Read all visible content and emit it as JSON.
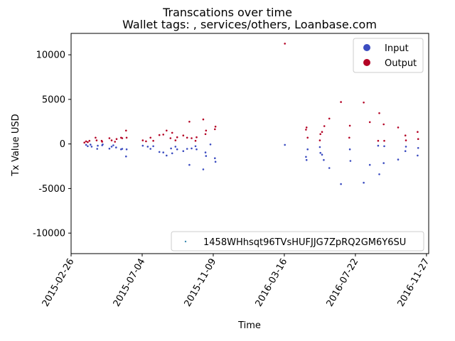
{
  "chart_data": {
    "type": "scatter",
    "title": "Transcations over time",
    "subtitle": "Wallet tags: , services/others, Loanbase.com",
    "xlabel": "Time",
    "ylabel": "Tx Value USD",
    "x_ticks": [
      "2015-02-26",
      "2015-07-04",
      "2015-11-09",
      "2016-03-16",
      "2016-07-22",
      "2016-11-27"
    ],
    "xlim": [
      "2015-02-26",
      "2016-12-01"
    ],
    "y_ticks": [
      -10000,
      -5000,
      0,
      5000,
      10000
    ],
    "ylim": [
      -12300,
      12400
    ],
    "grid": false,
    "legend_top": {
      "placement": "top-right",
      "entries": [
        {
          "label": "Input",
          "color": "#3b4cc0"
        },
        {
          "label": "Output",
          "color": "#b40426"
        }
      ]
    },
    "legend_bottom": {
      "placement": "bottom-right",
      "entries": [
        {
          "label": "1458WHhsqt96TVsHUFJJG7ZpRQ2GM6Y6SU",
          "color": "#3b8bb0"
        }
      ]
    },
    "series": [
      {
        "name": "Input",
        "color": "#3b4cc0",
        "points": [
          {
            "x": "2015-03-25",
            "y": -100
          },
          {
            "x": "2015-03-28",
            "y": -250
          },
          {
            "x": "2015-04-02",
            "y": -80
          },
          {
            "x": "2015-04-04",
            "y": -300
          },
          {
            "x": "2015-04-14",
            "y": -550
          },
          {
            "x": "2015-04-15",
            "y": -200
          },
          {
            "x": "2015-04-23",
            "y": -150
          },
          {
            "x": "2015-04-24",
            "y": -50
          },
          {
            "x": "2015-05-06",
            "y": -520
          },
          {
            "x": "2015-05-10",
            "y": -300
          },
          {
            "x": "2015-05-13",
            "y": -150
          },
          {
            "x": "2015-05-18",
            "y": -400
          },
          {
            "x": "2015-05-27",
            "y": -600
          },
          {
            "x": "2015-05-29",
            "y": -550
          },
          {
            "x": "2015-06-05",
            "y": -1400
          },
          {
            "x": "2015-06-06",
            "y": -600
          },
          {
            "x": "2015-07-05",
            "y": -200
          },
          {
            "x": "2015-07-14",
            "y": -300
          },
          {
            "x": "2015-07-19",
            "y": -550
          },
          {
            "x": "2015-07-24",
            "y": -250
          },
          {
            "x": "2015-08-04",
            "y": -900
          },
          {
            "x": "2015-08-11",
            "y": -950
          },
          {
            "x": "2015-08-17",
            "y": -1300
          },
          {
            "x": "2015-08-25",
            "y": -500
          },
          {
            "x": "2015-08-27",
            "y": -1050
          },
          {
            "x": "2015-09-02",
            "y": -300
          },
          {
            "x": "2015-09-05",
            "y": -600
          },
          {
            "x": "2015-09-16",
            "y": -800
          },
          {
            "x": "2015-09-23",
            "y": -550
          },
          {
            "x": "2015-09-27",
            "y": -2350
          },
          {
            "x": "2015-10-01",
            "y": -500
          },
          {
            "x": "2015-10-08",
            "y": -250
          },
          {
            "x": "2015-10-10",
            "y": -600
          },
          {
            "x": "2015-10-22",
            "y": -2850
          },
          {
            "x": "2015-10-26",
            "y": -950
          },
          {
            "x": "2015-10-27",
            "y": -1350
          },
          {
            "x": "2015-11-04",
            "y": -50
          },
          {
            "x": "2015-11-12",
            "y": -1600
          },
          {
            "x": "2015-11-13",
            "y": -2000
          },
          {
            "x": "2016-03-17",
            "y": -100
          },
          {
            "x": "2016-04-24",
            "y": -1450
          },
          {
            "x": "2016-04-25",
            "y": -1800
          },
          {
            "x": "2016-04-27",
            "y": -600
          },
          {
            "x": "2016-05-19",
            "y": -350
          },
          {
            "x": "2016-05-20",
            "y": -1000
          },
          {
            "x": "2016-05-23",
            "y": -1200
          },
          {
            "x": "2016-05-26",
            "y": -1800
          },
          {
            "x": "2016-06-05",
            "y": -2700
          },
          {
            "x": "2016-06-26",
            "y": -4500
          },
          {
            "x": "2016-07-12",
            "y": -600
          },
          {
            "x": "2016-07-13",
            "y": -1900
          },
          {
            "x": "2016-08-06",
            "y": -4350
          },
          {
            "x": "2016-08-17",
            "y": -2350
          },
          {
            "x": "2016-09-01",
            "y": -200
          },
          {
            "x": "2016-09-03",
            "y": -3400
          },
          {
            "x": "2016-09-11",
            "y": -2150
          },
          {
            "x": "2016-09-12",
            "y": -250
          },
          {
            "x": "2016-10-07",
            "y": -1750
          },
          {
            "x": "2016-10-20",
            "y": -800
          },
          {
            "x": "2016-10-21",
            "y": -300
          },
          {
            "x": "2016-11-11",
            "y": -1300
          },
          {
            "x": "2016-11-12",
            "y": -450
          }
        ]
      },
      {
        "name": "Output",
        "color": "#b40426",
        "points": [
          {
            "x": "2015-03-22",
            "y": 150
          },
          {
            "x": "2015-03-25",
            "y": 300
          },
          {
            "x": "2015-03-28",
            "y": 200
          },
          {
            "x": "2015-03-31",
            "y": 350
          },
          {
            "x": "2015-04-11",
            "y": 700
          },
          {
            "x": "2015-04-13",
            "y": 400
          },
          {
            "x": "2015-04-22",
            "y": 350
          },
          {
            "x": "2015-04-23",
            "y": 250
          },
          {
            "x": "2015-05-06",
            "y": 650
          },
          {
            "x": "2015-05-10",
            "y": 400
          },
          {
            "x": "2015-05-16",
            "y": 250
          },
          {
            "x": "2015-05-19",
            "y": 550
          },
          {
            "x": "2015-05-27",
            "y": 700
          },
          {
            "x": "2015-05-29",
            "y": 650
          },
          {
            "x": "2015-06-05",
            "y": 1500
          },
          {
            "x": "2015-06-06",
            "y": 700
          },
          {
            "x": "2015-07-05",
            "y": 400
          },
          {
            "x": "2015-07-11",
            "y": 300
          },
          {
            "x": "2015-07-19",
            "y": 700
          },
          {
            "x": "2015-07-24",
            "y": 350
          },
          {
            "x": "2015-08-04",
            "y": 1000
          },
          {
            "x": "2015-08-11",
            "y": 1050
          },
          {
            "x": "2015-08-17",
            "y": 1500
          },
          {
            "x": "2015-08-24",
            "y": 650
          },
          {
            "x": "2015-08-27",
            "y": 1250
          },
          {
            "x": "2015-09-02",
            "y": 400
          },
          {
            "x": "2015-09-05",
            "y": 750
          },
          {
            "x": "2015-09-16",
            "y": 950
          },
          {
            "x": "2015-09-23",
            "y": 700
          },
          {
            "x": "2015-09-27",
            "y": 2500
          },
          {
            "x": "2015-10-01",
            "y": 650
          },
          {
            "x": "2015-10-08",
            "y": 350
          },
          {
            "x": "2015-10-10",
            "y": 750
          },
          {
            "x": "2015-10-22",
            "y": 2750
          },
          {
            "x": "2015-10-26",
            "y": 1100
          },
          {
            "x": "2015-10-27",
            "y": 1500
          },
          {
            "x": "2015-11-12",
            "y": 1650
          },
          {
            "x": "2015-11-13",
            "y": 1950
          },
          {
            "x": "2016-03-17",
            "y": 11250
          },
          {
            "x": "2016-04-24",
            "y": 1600
          },
          {
            "x": "2016-04-25",
            "y": 1850
          },
          {
            "x": "2016-04-27",
            "y": 700
          },
          {
            "x": "2016-05-19",
            "y": 400
          },
          {
            "x": "2016-05-20",
            "y": 1100
          },
          {
            "x": "2016-05-23",
            "y": 1350
          },
          {
            "x": "2016-05-27",
            "y": 2000
          },
          {
            "x": "2016-06-05",
            "y": 2850
          },
          {
            "x": "2016-06-26",
            "y": 4700
          },
          {
            "x": "2016-07-11",
            "y": 700
          },
          {
            "x": "2016-07-12",
            "y": 2050
          },
          {
            "x": "2016-08-06",
            "y": 4650
          },
          {
            "x": "2016-08-17",
            "y": 2450
          },
          {
            "x": "2016-09-01",
            "y": 350
          },
          {
            "x": "2016-09-03",
            "y": 3450
          },
          {
            "x": "2016-09-11",
            "y": 2200
          },
          {
            "x": "2016-09-12",
            "y": 350
          },
          {
            "x": "2016-10-07",
            "y": 1850
          },
          {
            "x": "2016-10-20",
            "y": 950
          },
          {
            "x": "2016-10-21",
            "y": 400
          },
          {
            "x": "2016-11-11",
            "y": 1350
          },
          {
            "x": "2016-11-12",
            "y": 550
          }
        ]
      }
    ]
  }
}
